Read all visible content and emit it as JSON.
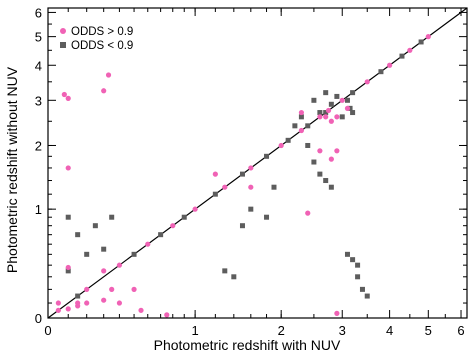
{
  "chart_data": {
    "type": "scatter",
    "xlabel": "Photometric redshift with NUV",
    "ylabel": "Photometric redshift without NUV",
    "scale": "log(1+z)",
    "xlim": [
      0,
      6.2
    ],
    "ylim": [
      0,
      6.2
    ],
    "xticks_major": [
      0,
      1,
      2,
      3,
      4,
      5,
      6
    ],
    "yticks_major": [
      0,
      1,
      2,
      3,
      4,
      5,
      6
    ],
    "legend_position": "top-left",
    "reference_line": "y = x",
    "colors": {
      "high_odds": "#f062b5",
      "low_odds": "#5d5d5d",
      "one_to_one": "#000000"
    },
    "series": [
      {
        "name": "ODDS > 0.9",
        "marker": "circle",
        "points": [
          [
            0.08,
            3.15
          ],
          [
            0.1,
            3.05
          ],
          [
            0.33,
            3.7
          ],
          [
            0.3,
            3.25
          ],
          [
            0.1,
            1.6
          ],
          [
            0.05,
            0.1
          ],
          [
            0.1,
            0.06
          ],
          [
            0.15,
            0.08
          ],
          [
            0.2,
            0.1
          ],
          [
            0.3,
            0.12
          ],
          [
            0.4,
            0.1
          ],
          [
            0.55,
            0.05
          ],
          [
            0.75,
            0.02
          ],
          [
            0.1,
            0.38
          ],
          [
            0.3,
            0.35
          ],
          [
            0.35,
            0.2
          ],
          [
            0.5,
            0.2
          ],
          [
            0.15,
            0.1
          ],
          [
            1.2,
            1.5
          ],
          [
            1.6,
            1.3
          ],
          [
            2.4,
            0.95
          ],
          [
            2.9,
            0.03
          ],
          [
            2.3,
            2.7
          ],
          [
            2.6,
            1.9
          ],
          [
            2.8,
            1.75
          ],
          [
            2.9,
            1.9
          ],
          [
            3.1,
            2.8
          ],
          [
            2.7,
            2.6
          ],
          [
            2.75,
            2.75
          ],
          [
            2.8,
            2.5
          ],
          [
            2.9,
            2.6
          ],
          [
            0.05,
            0.05
          ],
          [
            0.2,
            0.2
          ],
          [
            0.4,
            0.4
          ],
          [
            0.6,
            0.6
          ],
          [
            0.8,
            0.8
          ],
          [
            1.0,
            1.0
          ],
          [
            1.3,
            1.3
          ],
          [
            1.6,
            1.6
          ],
          [
            2.0,
            2.0
          ],
          [
            2.3,
            2.3
          ],
          [
            2.6,
            2.6
          ],
          [
            3.0,
            3.0
          ],
          [
            3.5,
            3.5
          ],
          [
            4.0,
            4.0
          ],
          [
            4.5,
            4.5
          ],
          [
            5.0,
            5.0
          ]
        ]
      },
      {
        "name": "ODDS < 0.9",
        "marker": "square",
        "points": [
          [
            0.1,
            0.9
          ],
          [
            0.15,
            0.7
          ],
          [
            0.25,
            0.8
          ],
          [
            0.3,
            0.55
          ],
          [
            0.35,
            0.9
          ],
          [
            0.2,
            0.5
          ],
          [
            0.1,
            0.35
          ],
          [
            0.15,
            0.15
          ],
          [
            1.3,
            0.35
          ],
          [
            1.5,
            0.8
          ],
          [
            1.4,
            0.3
          ],
          [
            1.6,
            1.0
          ],
          [
            1.8,
            0.9
          ],
          [
            1.9,
            1.3
          ],
          [
            2.2,
            2.4
          ],
          [
            2.3,
            2.6
          ],
          [
            2.5,
            3.0
          ],
          [
            2.6,
            2.7
          ],
          [
            2.7,
            3.2
          ],
          [
            2.8,
            2.9
          ],
          [
            2.9,
            3.1
          ],
          [
            2.4,
            2.0
          ],
          [
            2.5,
            1.7
          ],
          [
            2.6,
            1.5
          ],
          [
            2.7,
            1.4
          ],
          [
            2.8,
            1.3
          ],
          [
            3.0,
            2.6
          ],
          [
            3.1,
            3.0
          ],
          [
            3.15,
            2.8
          ],
          [
            3.2,
            2.7
          ],
          [
            3.1,
            0.5
          ],
          [
            3.2,
            0.45
          ],
          [
            3.3,
            0.4
          ],
          [
            3.4,
            0.2
          ],
          [
            3.5,
            0.15
          ],
          [
            3.3,
            0.3
          ],
          [
            0.5,
            0.5
          ],
          [
            0.7,
            0.7
          ],
          [
            0.9,
            0.9
          ],
          [
            1.2,
            1.2
          ],
          [
            1.5,
            1.5
          ],
          [
            1.8,
            1.8
          ],
          [
            2.1,
            2.1
          ],
          [
            2.4,
            2.4
          ],
          [
            2.7,
            2.7
          ],
          [
            3.2,
            3.2
          ],
          [
            3.8,
            3.8
          ],
          [
            4.3,
            4.3
          ],
          [
            4.8,
            4.8
          ]
        ]
      }
    ]
  }
}
